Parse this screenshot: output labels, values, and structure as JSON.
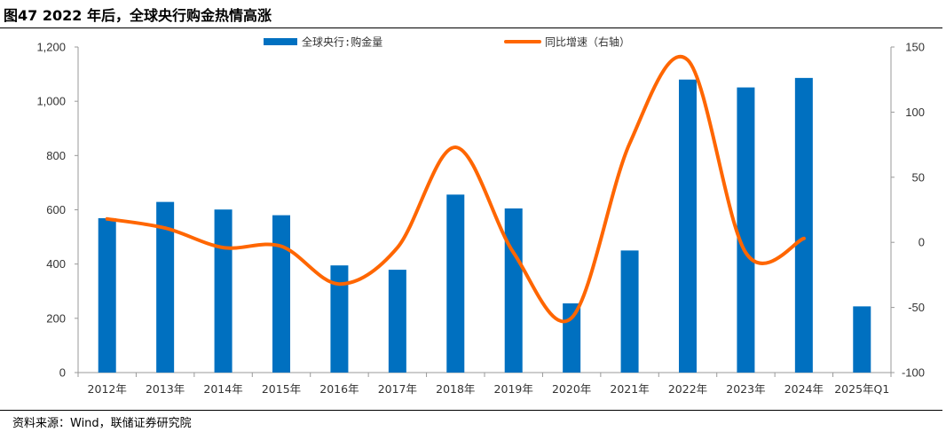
{
  "title": "图47 2022 年后，全球央行购金热情高涨",
  "source": "资料来源：Wind，联储证券研究院",
  "chart_data": {
    "type": "bar",
    "categories": [
      "2012年",
      "2013年",
      "2014年",
      "2015年",
      "2016年",
      "2017年",
      "2018年",
      "2019年",
      "2020年",
      "2021年",
      "2022年",
      "2023年",
      "2024年",
      "2025年Q1"
    ],
    "series": [
      {
        "name": "全球央行:购金量",
        "type": "bar",
        "axis": "left",
        "color": "#0070C0",
        "values": [
          569,
          629,
          601,
          580,
          395,
          379,
          656,
          605,
          255,
          450,
          1080,
          1051,
          1086,
          244
        ]
      },
      {
        "name": "同比增速（右轴）",
        "type": "line",
        "axis": "right",
        "color": "#FF6600",
        "values": [
          18,
          11,
          -4,
          -3,
          -32,
          -4,
          73,
          -8,
          -58,
          76,
          140,
          -8,
          3,
          null
        ]
      }
    ],
    "y_left": {
      "min": 0,
      "max": 1200,
      "ticks": [
        "0",
        "200",
        "400",
        "600",
        "800",
        "1,000",
        "1,200"
      ]
    },
    "y_right": {
      "min": -100,
      "max": 150,
      "ticks": [
        "-100",
        "-50",
        "0",
        "50",
        "100",
        "150"
      ]
    },
    "legend_position": "top",
    "grid": false
  }
}
